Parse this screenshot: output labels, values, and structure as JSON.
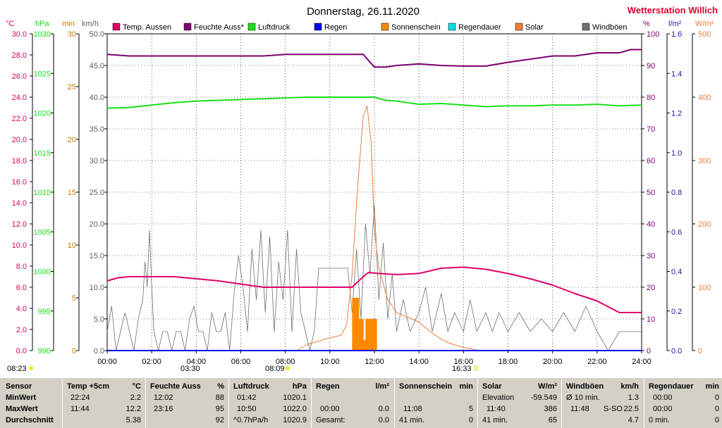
{
  "title": "Donnerstag, 26.11.2020",
  "station": "Wetterstation Willich",
  "axis_units": {
    "temp": "°C",
    "pressure": "hPa",
    "duration": "min",
    "wind": "km/h",
    "humidity": "%",
    "rain": "l/m²",
    "solar": "W/m²"
  },
  "legend": [
    {
      "label": "Temp. Aussen",
      "color": "#e0006a"
    },
    {
      "label": "Feuchte Auss*",
      "color": "#7d006e"
    },
    {
      "label": "Luftdruck",
      "color": "#1ae01a"
    },
    {
      "label": "Regen",
      "color": "#0000e8"
    },
    {
      "label": "Sonnenschein",
      "color": "#ff8a00"
    },
    {
      "label": "Regendauer",
      "color": "#00e0e0"
    },
    {
      "label": "Solar",
      "color": "#ef7c3c"
    },
    {
      "label": "Windböen",
      "color": "#707070"
    }
  ],
  "colors": {
    "temp": "#e0006a",
    "pressure": "#1ae01a",
    "duration": "#c87800",
    "wind": "#606060",
    "humidity": "#7d006e",
    "rain": "#1a1aa0",
    "solar": "#ef7c3c",
    "title_red": "#e00030"
  },
  "markers": {
    "sunrise": "08:23",
    "low": "03:30",
    "sunrise2": "08:09",
    "sunset": "16:33"
  },
  "chart_data": {
    "type": "line",
    "title": "Donnerstag, 26.11.2020",
    "x_ticks": [
      "00:00",
      "02:00",
      "04:00",
      "06:00",
      "08:00",
      "10:00",
      "12:00",
      "14:00",
      "16:00",
      "18:00",
      "20:00",
      "22:00",
      "24:00"
    ],
    "x_range_hours": [
      0,
      24
    ],
    "y_axes": {
      "temp": {
        "unit": "°C",
        "range": [
          0,
          30
        ],
        "ticks": [
          "0.0",
          "2.0",
          "4.0",
          "6.0",
          "8.0",
          "10.0",
          "12.0",
          "14.0",
          "16.0",
          "18.0",
          "20.0",
          "22.0",
          "24.0",
          "26.0",
          "28.0",
          "30.0"
        ]
      },
      "pressure": {
        "unit": "hPa",
        "range": [
          990,
          1030
        ],
        "ticks": [
          "990",
          "995",
          "1000",
          "1005",
          "1010",
          "1015",
          "1020",
          "1025",
          "1030"
        ]
      },
      "duration": {
        "unit": "min",
        "range": [
          0,
          30
        ],
        "ticks": [
          "0",
          "5",
          "10",
          "15",
          "20",
          "25",
          "30"
        ]
      },
      "wind": {
        "unit": "km/h",
        "range": [
          0,
          50
        ],
        "ticks": [
          "0.0",
          "5.0",
          "10.0",
          "15.0",
          "20.0",
          "25.0",
          "30.0",
          "35.0",
          "40.0",
          "45.0",
          "50.0"
        ]
      },
      "humidity": {
        "unit": "%",
        "range": [
          0,
          100
        ],
        "ticks": [
          "0",
          "10",
          "20",
          "30",
          "40",
          "50",
          "60",
          "70",
          "80",
          "90",
          "100"
        ]
      },
      "rain": {
        "unit": "l/m²",
        "range": [
          0,
          1.6
        ],
        "ticks": [
          "0.0",
          "0.2",
          "0.4",
          "0.6",
          "0.8",
          "1.0",
          "1.2",
          "1.4",
          "1.6"
        ]
      },
      "solar": {
        "unit": "W/m²",
        "range": [
          0,
          500
        ],
        "ticks": [
          "0",
          "100",
          "200",
          "300",
          "400",
          "500"
        ]
      }
    },
    "series": [
      {
        "name": "Temp. Aussen",
        "axis": "temp",
        "points": [
          [
            0,
            6.6
          ],
          [
            0.5,
            6.9
          ],
          [
            1,
            7.0
          ],
          [
            2,
            7.0
          ],
          [
            3,
            7.0
          ],
          [
            4,
            6.8
          ],
          [
            5,
            6.6
          ],
          [
            6,
            6.3
          ],
          [
            7,
            6.0
          ],
          [
            8,
            6.0
          ],
          [
            9,
            6.0
          ],
          [
            10,
            6.0
          ],
          [
            11,
            6.0
          ],
          [
            11.5,
            7.0
          ],
          [
            11.74,
            7.4
          ],
          [
            12.2,
            7.3
          ],
          [
            13,
            7.2
          ],
          [
            14,
            7.3
          ],
          [
            15,
            7.8
          ],
          [
            16,
            7.9
          ],
          [
            17,
            7.7
          ],
          [
            18,
            7.3
          ],
          [
            19,
            6.8
          ],
          [
            20,
            6.2
          ],
          [
            21,
            5.4
          ],
          [
            22,
            4.7
          ],
          [
            23,
            3.6
          ],
          [
            24,
            3.6
          ]
        ]
      },
      {
        "name": "Feuchte Auss*",
        "axis": "humidity",
        "points": [
          [
            0,
            93.5
          ],
          [
            1,
            93
          ],
          [
            3,
            93
          ],
          [
            7,
            93
          ],
          [
            8,
            93.5
          ],
          [
            11.5,
            93.5
          ],
          [
            12,
            89.5
          ],
          [
            12.5,
            89.5
          ],
          [
            13,
            90
          ],
          [
            14,
            90.5
          ],
          [
            15,
            90
          ],
          [
            16,
            89.8
          ],
          [
            17,
            89.8
          ],
          [
            18,
            91
          ],
          [
            19,
            92
          ],
          [
            20,
            93
          ],
          [
            21,
            93
          ],
          [
            22,
            94
          ],
          [
            23,
            94
          ],
          [
            23.5,
            95
          ],
          [
            24,
            95
          ]
        ]
      },
      {
        "name": "Luftdruck",
        "axis": "pressure",
        "points": [
          [
            0,
            1020.6
          ],
          [
            1,
            1020.7
          ],
          [
            2,
            1021.0
          ],
          [
            3,
            1021.3
          ],
          [
            4,
            1021.5
          ],
          [
            5,
            1021.6
          ],
          [
            6,
            1021.7
          ],
          [
            7,
            1021.8
          ],
          [
            8,
            1021.9
          ],
          [
            9,
            1022.0
          ],
          [
            10,
            1022.0
          ],
          [
            10.83,
            1022.0
          ],
          [
            11,
            1022.0
          ],
          [
            12,
            1022.0
          ],
          [
            12.5,
            1021.6
          ],
          [
            13,
            1021.5
          ],
          [
            14,
            1021.1
          ],
          [
            15,
            1021.2
          ],
          [
            16,
            1021.0
          ],
          [
            17,
            1020.8
          ],
          [
            18,
            1020.9
          ],
          [
            19,
            1020.9
          ],
          [
            20,
            1021.0
          ],
          [
            21,
            1021.0
          ],
          [
            22,
            1021.1
          ],
          [
            23,
            1020.9
          ],
          [
            24,
            1021.0
          ]
        ]
      },
      {
        "name": "Solar",
        "axis": "solar",
        "points": [
          [
            8.5,
            0
          ],
          [
            9,
            10
          ],
          [
            10,
            20
          ],
          [
            10.5,
            24
          ],
          [
            10.75,
            40
          ],
          [
            11,
            120
          ],
          [
            11.25,
            260
          ],
          [
            11.5,
            370
          ],
          [
            11.67,
            386
          ],
          [
            11.85,
            330
          ],
          [
            12,
            190
          ],
          [
            12.2,
            130
          ],
          [
            12.6,
            80
          ],
          [
            13,
            60
          ],
          [
            14,
            45
          ],
          [
            14.5,
            30
          ],
          [
            15,
            18
          ],
          [
            15.5,
            10
          ],
          [
            16,
            5
          ],
          [
            16.5,
            2
          ],
          [
            16.55,
            0
          ]
        ]
      },
      {
        "name": "Sonnenschein",
        "axis": "duration",
        "bars": [
          [
            11.0,
            5.0
          ],
          [
            11.1,
            5.0
          ],
          [
            11.2,
            5.0
          ],
          [
            11.3,
            3.0
          ],
          [
            11.4,
            3.0
          ],
          [
            11.5,
            1.0
          ],
          [
            11.6,
            3.0
          ],
          [
            11.7,
            3.0
          ],
          [
            11.8,
            3.0
          ],
          [
            11.9,
            3.0
          ],
          [
            12.0,
            3.0
          ]
        ]
      },
      {
        "name": "Regen",
        "axis": "rain",
        "points": [
          [
            0,
            0
          ],
          [
            24,
            0
          ]
        ]
      },
      {
        "name": "Regendauer",
        "axis": "duration",
        "points": [
          [
            0,
            0
          ],
          [
            24,
            0
          ]
        ]
      },
      {
        "name": "Windböen",
        "axis": "wind",
        "points": [
          [
            0,
            3
          ],
          [
            0.2,
            7
          ],
          [
            0.4,
            0
          ],
          [
            0.6,
            3
          ],
          [
            0.8,
            6
          ],
          [
            1,
            3
          ],
          [
            1.2,
            0
          ],
          [
            1.4,
            5
          ],
          [
            1.6,
            8
          ],
          [
            1.7,
            14
          ],
          [
            1.8,
            10
          ],
          [
            1.9,
            19
          ],
          [
            2,
            10
          ],
          [
            2.1,
            3
          ],
          [
            2.3,
            0
          ],
          [
            2.5,
            3
          ],
          [
            2.7,
            3
          ],
          [
            2.9,
            0
          ],
          [
            3.1,
            3
          ],
          [
            3.3,
            3
          ],
          [
            3.5,
            0
          ],
          [
            3.7,
            5
          ],
          [
            3.9,
            7
          ],
          [
            4.1,
            3
          ],
          [
            4.3,
            3
          ],
          [
            4.5,
            0
          ],
          [
            4.7,
            6
          ],
          [
            4.9,
            3
          ],
          [
            5.1,
            3
          ],
          [
            5.3,
            6
          ],
          [
            5.5,
            0
          ],
          [
            5.7,
            9
          ],
          [
            5.9,
            15
          ],
          [
            6.1,
            10
          ],
          [
            6.3,
            3
          ],
          [
            6.5,
            16
          ],
          [
            6.7,
            8
          ],
          [
            6.9,
            19
          ],
          [
            7.1,
            6
          ],
          [
            7.3,
            18
          ],
          [
            7.5,
            3
          ],
          [
            7.7,
            14
          ],
          [
            7.9,
            8
          ],
          [
            8.1,
            19
          ],
          [
            8.3,
            3
          ],
          [
            8.5,
            16
          ],
          [
            8.7,
            6
          ],
          [
            8.9,
            3
          ],
          [
            9.1,
            0
          ],
          [
            9.3,
            3
          ],
          [
            9.5,
            13
          ],
          [
            10,
            13
          ],
          [
            10.5,
            13
          ],
          [
            10.8,
            13
          ],
          [
            11,
            6
          ],
          [
            11.2,
            16
          ],
          [
            11.4,
            5
          ],
          [
            11.6,
            20
          ],
          [
            11.8,
            12
          ],
          [
            12,
            23
          ],
          [
            12.2,
            8
          ],
          [
            12.4,
            17
          ],
          [
            12.6,
            5
          ],
          [
            12.8,
            12
          ],
          [
            13,
            3
          ],
          [
            13.3,
            8
          ],
          [
            13.6,
            3
          ],
          [
            14,
            6
          ],
          [
            14.3,
            10
          ],
          [
            14.6,
            3
          ],
          [
            15,
            9
          ],
          [
            15.3,
            3
          ],
          [
            15.6,
            6
          ],
          [
            16,
            3
          ],
          [
            16.3,
            8
          ],
          [
            16.6,
            3
          ],
          [
            17,
            6
          ],
          [
            17.3,
            3
          ],
          [
            17.6,
            6
          ],
          [
            18,
            3
          ],
          [
            18.5,
            6
          ],
          [
            19,
            3
          ],
          [
            19.5,
            5
          ],
          [
            20,
            3
          ],
          [
            20.5,
            6
          ],
          [
            21,
            3
          ],
          [
            21.5,
            7
          ],
          [
            22,
            3
          ],
          [
            22.5,
            0
          ],
          [
            23,
            3
          ],
          [
            23.5,
            3
          ],
          [
            24,
            3
          ]
        ]
      }
    ]
  },
  "stats": {
    "row_labels": [
      "Sensor",
      "MinWert",
      "MaxWert",
      "Durchschnitt"
    ],
    "temp": {
      "header": "Temp +5cm",
      "unit": "°C",
      "min_time": "22:24",
      "min": "2.2",
      "max_time": "11:44",
      "max": "12.2",
      "avg": "5.38"
    },
    "hum": {
      "header": "Feuchte Auss",
      "unit": "%",
      "min_time": "12:02",
      "min": "88",
      "max_time": "23:16",
      "max": "95",
      "avg": "92"
    },
    "press": {
      "header": "Luftdruck",
      "unit": "hPa",
      "min_time": "01:42",
      "min": "1020.1",
      "max_time": "10:50",
      "max": "1022.0",
      "avg_label": "^0.7hPa/h",
      "avg": "1020.9"
    },
    "rain": {
      "header": "Regen",
      "unit": "l/m²",
      "max_time": "00:00",
      "max": "0.0",
      "total_label": "Gesamt:",
      "total": "0.0"
    },
    "sun": {
      "header": "Sonnenschein",
      "unit": "min",
      "max_time": "11:08",
      "max": "5",
      "total_label": "41 min.",
      "total": "0"
    },
    "solar": {
      "header": "Solar",
      "unit": "W/m²",
      "elev_label": "Elevation",
      "elev": "-59.549",
      "max_time": "11:40",
      "max": "386",
      "total_label": "41 min.",
      "total": "65"
    },
    "wind": {
      "header": "Windböen",
      "unit": "km/h",
      "avg_label": "Ø 10 min.",
      "avg": "1.3",
      "max_time": "11:48",
      "dir": "S-SO",
      "max": "22.5",
      "avg2": "4.7"
    },
    "raindur": {
      "header": "Regendauer",
      "unit": "min",
      "v1_time": "00:00",
      "v1": "0",
      "v2_time": "00:00",
      "v2": "0",
      "total_label": "0 min.",
      "total": "0"
    }
  }
}
